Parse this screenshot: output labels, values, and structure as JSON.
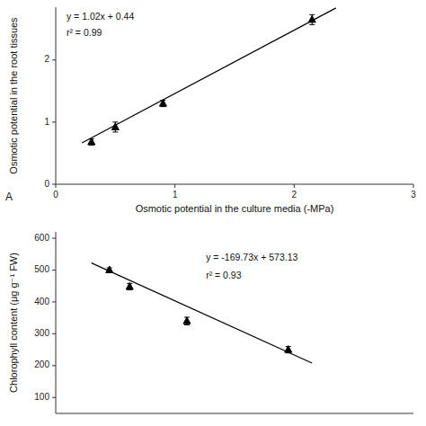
{
  "chart_data": [
    {
      "type": "scatter",
      "xlabel": "Osmotic potential in the culture media (-MPa)",
      "ylabel": "Osmotic potential in the root tissues",
      "annotations": [
        "y = 1.02x + 0.44",
        "r² = 0.99",
        "A"
      ],
      "xlim": [
        0,
        3
      ],
      "ylim": [
        0,
        2.85
      ],
      "xticks": [
        0,
        1,
        2,
        3
      ],
      "yticks": [
        0,
        1,
        2
      ],
      "series": [
        {
          "type": "scatter",
          "marker": "triangle",
          "color": "black",
          "x": [
            0.3,
            0.5,
            0.9,
            2.15
          ],
          "values": [
            0.68,
            0.92,
            1.3,
            2.65
          ],
          "errors": [
            0.05,
            0.08,
            0.05,
            0.08
          ]
        },
        {
          "type": "line",
          "color": "black",
          "x": [
            0.22,
            2.35
          ],
          "values": [
            0.6644,
            2.837
          ]
        }
      ]
    },
    {
      "type": "scatter",
      "ylabel": "Chlorophyll content (μg g⁻¹ FW)",
      "annotations": [
        "y = -169.73x + 573.13",
        "r² = 0.93"
      ],
      "xlim": [
        0,
        3
      ],
      "ylim": [
        50,
        620
      ],
      "yticks": [
        100,
        200,
        300,
        400,
        500,
        600
      ],
      "tick_labels": "y",
      "series": [
        {
          "type": "scatter",
          "marker": "triangle",
          "color": "black",
          "x": [
            0.45,
            0.62,
            1.1,
            1.95
          ],
          "values": [
            500,
            448,
            340,
            250
          ],
          "errors": [
            7,
            10,
            12,
            10
          ]
        },
        {
          "type": "line",
          "color": "black",
          "x": [
            0.3,
            2.15
          ],
          "values": [
            522.211,
            208.2105
          ]
        }
      ]
    }
  ]
}
